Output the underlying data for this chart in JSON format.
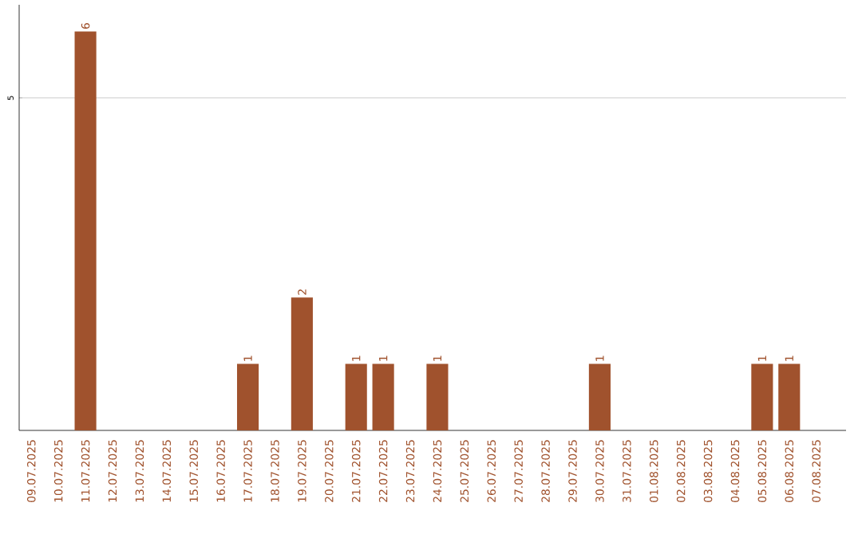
{
  "chart_data": {
    "type": "bar",
    "categories": [
      "09.07.2025",
      "10.07.2025",
      "11.07.2025",
      "12.07.2025",
      "13.07.2025",
      "14.07.2025",
      "15.07.2025",
      "16.07.2025",
      "17.07.2025",
      "18.07.2025",
      "19.07.2025",
      "20.07.2025",
      "21.07.2025",
      "22.07.2025",
      "23.07.2025",
      "24.07.2025",
      "25.07.2025",
      "26.07.2025",
      "27.07.2025",
      "28.07.2025",
      "29.07.2025",
      "30.07.2025",
      "31.07.2025",
      "01.08.2025",
      "02.08.2025",
      "03.08.2025",
      "04.08.2025",
      "05.08.2025",
      "06.08.2025",
      "07.08.2025"
    ],
    "values": [
      0,
      0,
      6,
      0,
      0,
      0,
      0,
      0,
      1,
      0,
      2,
      0,
      1,
      1,
      0,
      1,
      0,
      0,
      0,
      0,
      0,
      1,
      0,
      0,
      0,
      0,
      0,
      1,
      1,
      0
    ],
    "value_labels": [
      null,
      null,
      "6",
      null,
      null,
      null,
      null,
      null,
      "1",
      null,
      "2",
      null,
      "1",
      "1",
      null,
      "1",
      null,
      null,
      null,
      null,
      null,
      "1",
      null,
      null,
      null,
      null,
      null,
      "1",
      "1",
      null
    ],
    "color": "#a0522d",
    "ylim": [
      0,
      6.4
    ],
    "yticks": [
      5
    ],
    "grid": "y"
  }
}
